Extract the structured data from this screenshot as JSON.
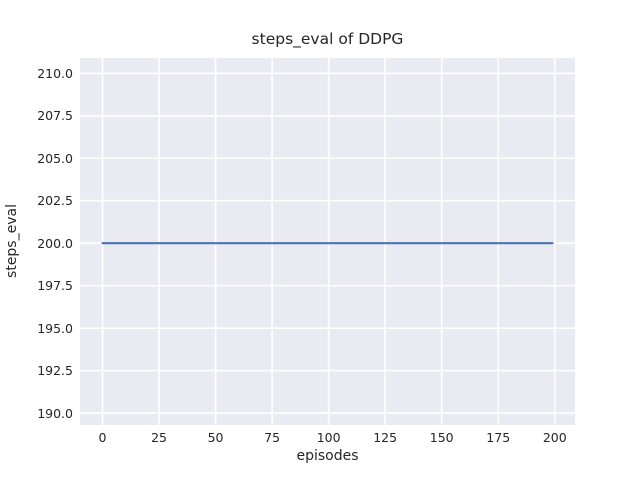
{
  "chart_data": {
    "type": "line",
    "title": "steps_eval of DDPG",
    "xlabel": "episodes",
    "ylabel": "steps_eval",
    "xlim": [
      -9.95,
      208.95
    ],
    "ylim": [
      189.3,
      210.9
    ],
    "xtick_values": [
      0,
      25,
      50,
      75,
      100,
      125,
      150,
      175,
      200
    ],
    "xtick_labels": [
      "0",
      "25",
      "50",
      "75",
      "100",
      "125",
      "150",
      "175",
      "200"
    ],
    "ytick_values": [
      190,
      192.5,
      195,
      197.5,
      200,
      202.5,
      205,
      207.5,
      210
    ],
    "ytick_labels": [
      "190.0",
      "192.5",
      "195.0",
      "197.5",
      "200.0",
      "202.5",
      "205.0",
      "207.5",
      "210.0"
    ],
    "grid": true,
    "legend": "none",
    "axes_background": "#eaeaf2",
    "grid_color": "#ffffff",
    "series": [
      {
        "name": "steps_eval",
        "color": "#4c72b0",
        "x": [
          0,
          199
        ],
        "y": [
          200,
          200
        ]
      }
    ]
  }
}
